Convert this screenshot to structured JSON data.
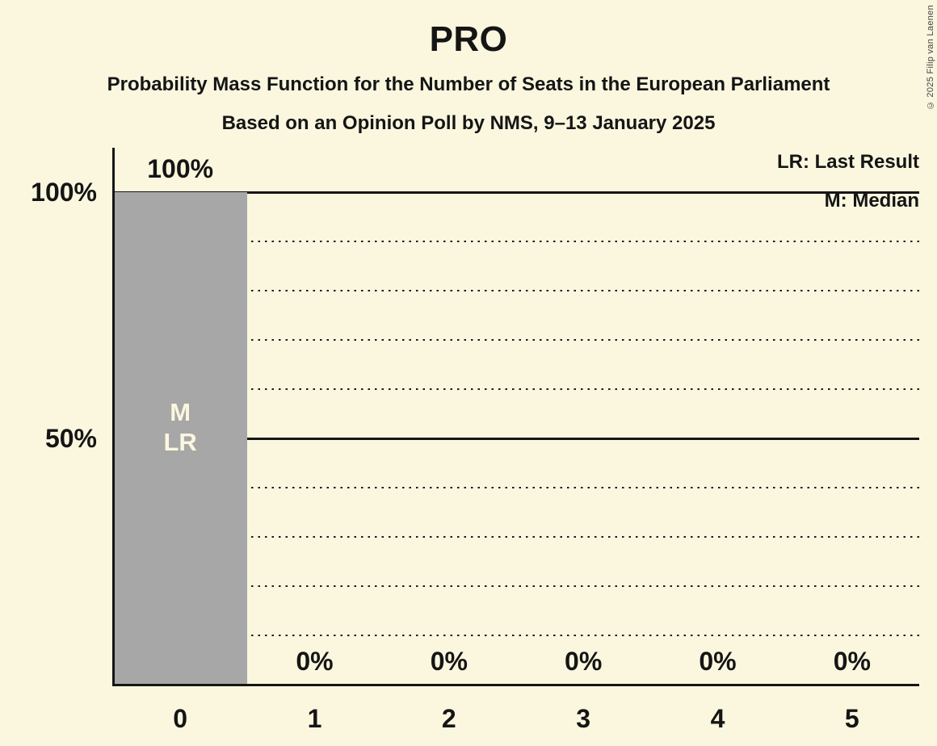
{
  "header": {
    "title": "PRO",
    "subtitle1": "Probability Mass Function for the Number of Seats in the European Parliament",
    "subtitle2": "Based on an Opinion Poll by NMS, 9–13 January 2025"
  },
  "legend": {
    "line1": "LR: Last Result",
    "line2": "M: Median"
  },
  "copyright": "© 2025 Filip van Laenen",
  "colors": {
    "background": "#FBF7DF",
    "bar": "#A7A7A7",
    "bar_label_text": "#FBF7DF",
    "text": "#151515"
  },
  "chart_data": {
    "type": "bar",
    "title": "PRO",
    "categories": [
      "0",
      "1",
      "2",
      "3",
      "4",
      "5"
    ],
    "values": [
      100,
      0,
      0,
      0,
      0,
      0
    ],
    "value_labels": [
      "100%",
      "0%",
      "0%",
      "0%",
      "0%",
      "0%"
    ],
    "bar_annotations": [
      [
        "M",
        "LR"
      ],
      [],
      [],
      [],
      [],
      []
    ],
    "xlabel": "",
    "ylabel": "",
    "ylim": [
      0,
      100
    ],
    "yticks": [
      {
        "value": 100,
        "label": "100%"
      },
      {
        "value": 50,
        "label": "50%"
      }
    ],
    "solid_gridlines": [
      100,
      50
    ],
    "dotted_gridlines": [
      90,
      80,
      70,
      60,
      40,
      30,
      20,
      10
    ],
    "grid": "horizontal, dotted minor / solid major",
    "legend_position": "top-right",
    "legend_entries": [
      "LR: Last Result",
      "M: Median"
    ],
    "median_seat": 0,
    "last_result_seat": 0
  }
}
